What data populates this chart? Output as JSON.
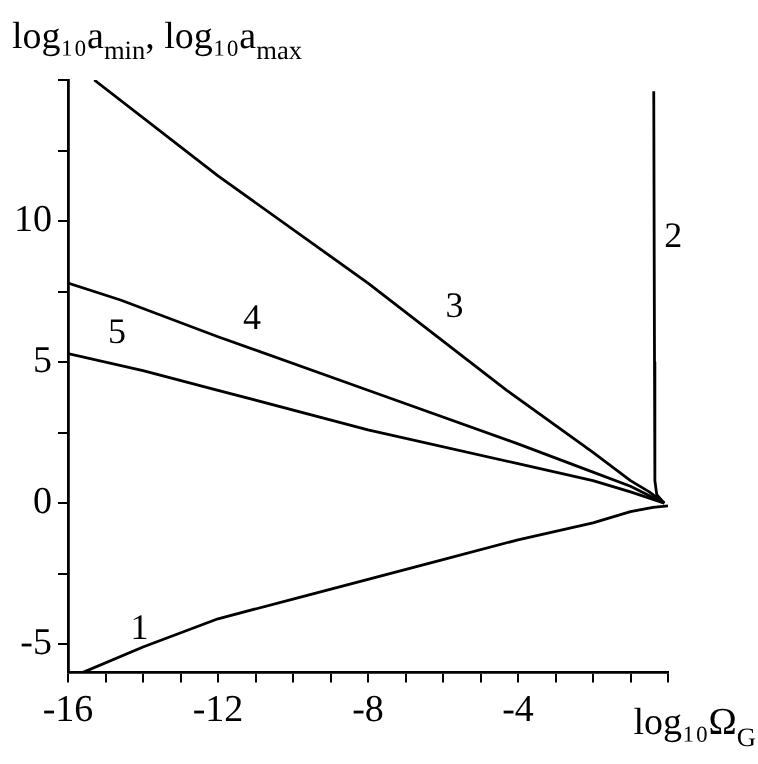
{
  "chart_data": {
    "type": "line",
    "ylabel": "log₁₀a$_{min}$, log₁₀a$_{max}$",
    "xlabel": "log₁₀Ω$_{G}$",
    "xlim": [
      -16,
      0
    ],
    "ylim": [
      -6,
      15
    ],
    "xticks": [
      -16,
      {
        "value": -15,
        "label": null
      },
      {
        "value": -14,
        "label": null
      },
      {
        "value": -13,
        "label": null
      },
      -12,
      {
        "value": -11,
        "label": null
      },
      {
        "value": -10,
        "label": null
      },
      {
        "value": -9,
        "label": null
      },
      -8,
      {
        "value": -7,
        "label": null
      },
      {
        "value": -6,
        "label": null
      },
      {
        "value": -5,
        "label": null
      },
      -4,
      {
        "value": -3,
        "label": null
      },
      {
        "value": -2,
        "label": null
      },
      {
        "value": -1,
        "label": null
      },
      {
        "value": 0,
        "label": null
      }
    ],
    "yticks": [
      -5,
      {
        "value": -2.5,
        "label": null
      },
      0,
      {
        "value": 2.5,
        "label": null
      },
      5,
      {
        "value": 7.5,
        "label": null
      },
      10,
      {
        "value": 12.5,
        "label": null
      },
      {
        "value": 15,
        "label": null
      }
    ],
    "grid": false,
    "legend": false,
    "marker": "none",
    "line_style": "solid",
    "series": [
      {
        "color": "#000000",
        "x": [
          -15.6,
          -14,
          -12,
          -10,
          -8,
          -6,
          -4,
          -2,
          -1,
          -0.4,
          0
        ],
        "values": [
          -6,
          -5.1,
          -4.1,
          -3.4,
          -2.7,
          -2,
          -1.3,
          -0.7,
          -0.3,
          -0.15,
          -0.1
        ]
      },
      {
        "color": "#000000",
        "x": [
          -0.38,
          -0.36,
          -0.35,
          -0.3,
          -0.1
        ],
        "values": [
          14.6,
          5,
          0.8,
          0.3,
          0
        ]
      },
      {
        "color": "#000000",
        "x": [
          -15.3,
          -12,
          -8,
          -4.3,
          -2,
          -1,
          -0.5,
          -0.1
        ],
        "values": [
          15,
          11.6,
          7.8,
          4,
          1.8,
          0.8,
          0.4,
          0
        ]
      },
      {
        "color": "#000000",
        "x": [
          -16,
          -14.6,
          -12,
          -8,
          -4,
          -2,
          -1,
          -0.1
        ],
        "values": [
          7.8,
          7.2,
          5.9,
          4,
          2.1,
          1.1,
          0.6,
          0
        ]
      },
      {
        "color": "#000000",
        "x": [
          -16,
          -14,
          -12,
          -8,
          -4,
          -2,
          -1,
          -0.1
        ],
        "values": [
          5.3,
          4.7,
          4,
          2.6,
          1.4,
          0.8,
          0.4,
          0
        ]
      }
    ],
    "annotations": [
      {
        "text": "1",
        "x": -14.6,
        "y": -5.4
      },
      {
        "text": "2",
        "x": -0.37,
        "y": 8.5
      },
      {
        "text": "3",
        "x": -6.2,
        "y": 6
      },
      {
        "text": "4",
        "x": -11.6,
        "y": 5.6
      },
      {
        "text": "5",
        "x": -15.2,
        "y": 5.1
      }
    ]
  }
}
